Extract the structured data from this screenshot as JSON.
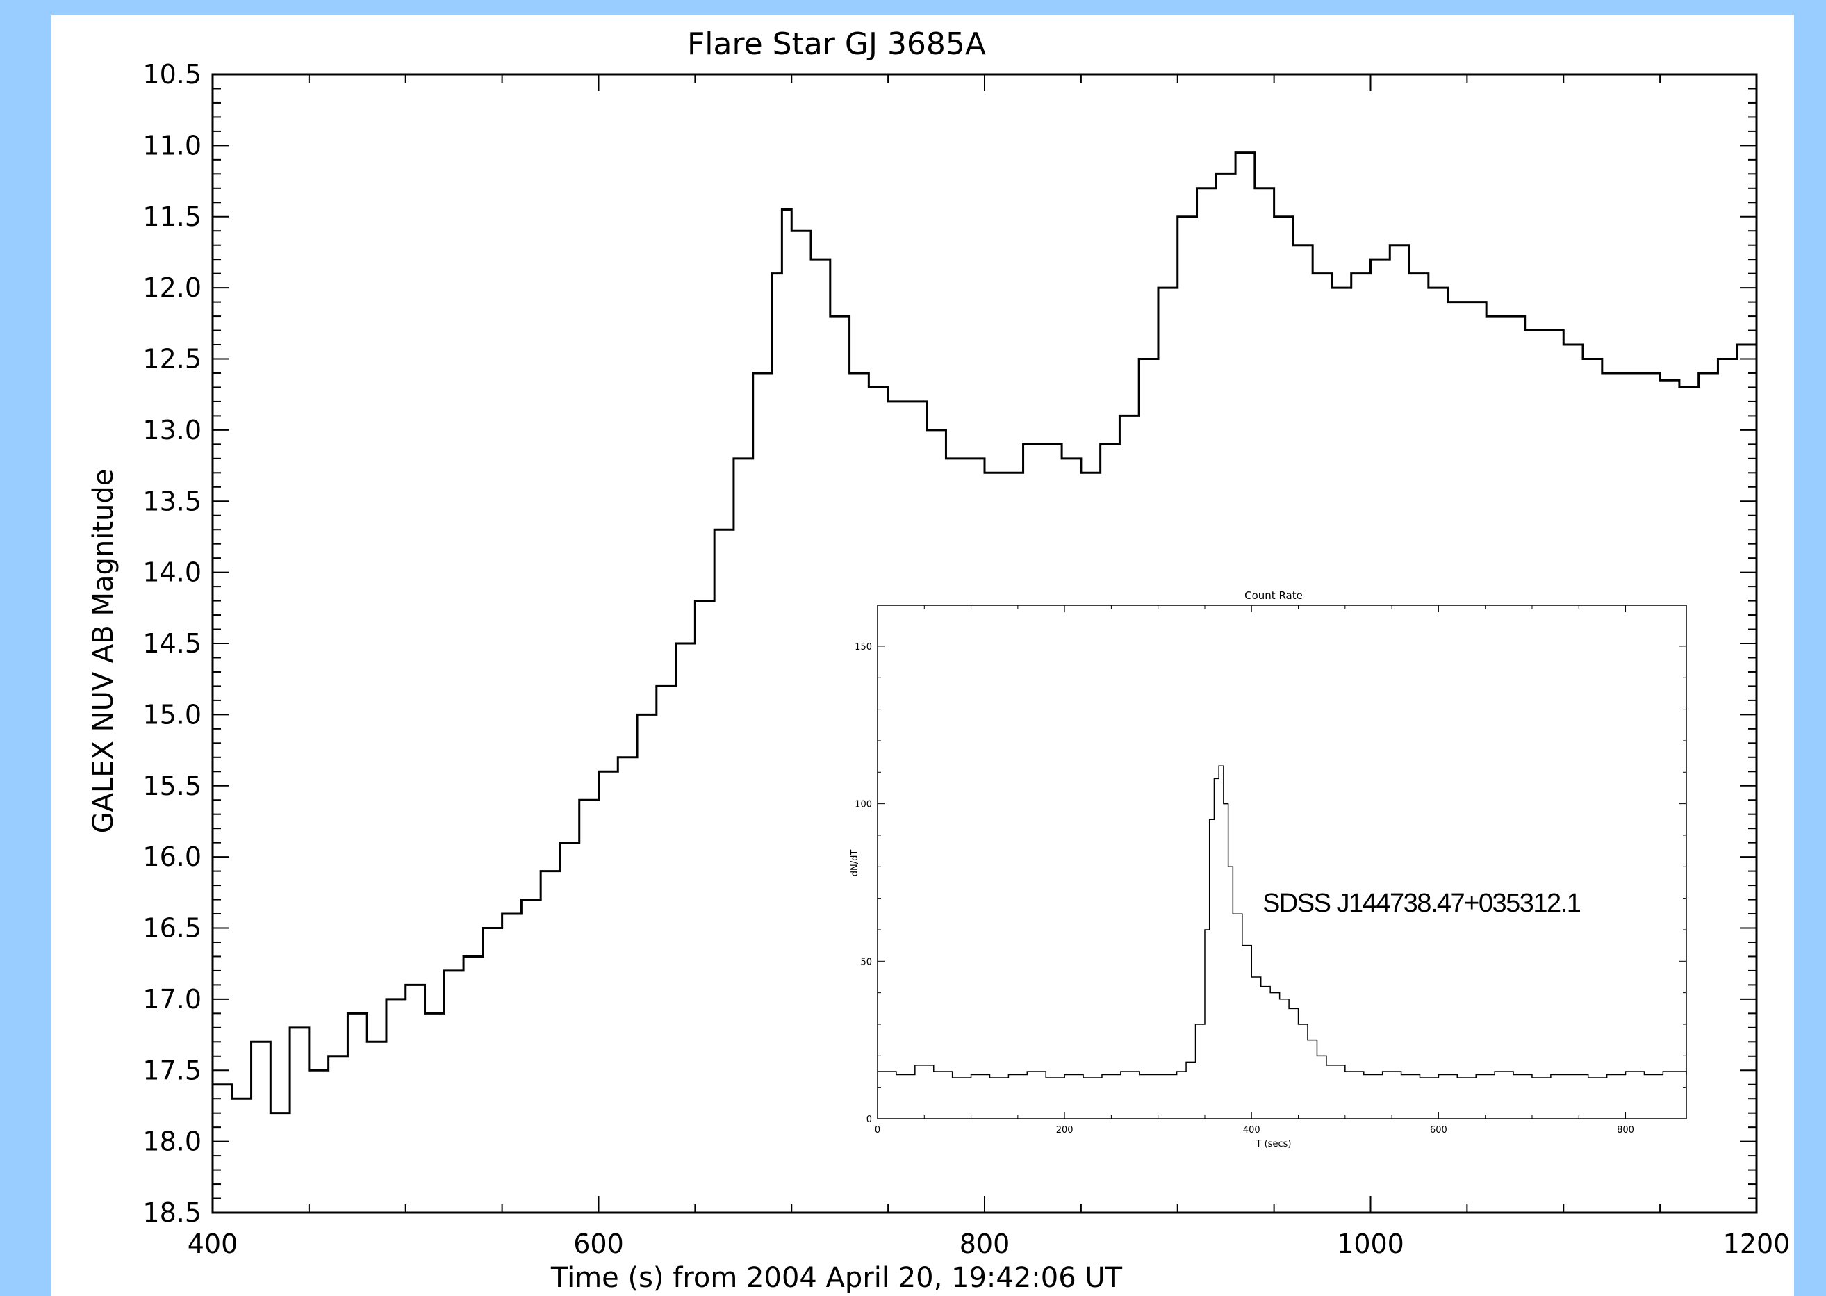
{
  "colors": {
    "background": "#99ccff",
    "panel": "#ffffff",
    "ink": "#000000"
  },
  "chart_data": [
    {
      "type": "line",
      "title": "Flare Star GJ 3685A",
      "xlabel": "Time (s) from 2004 April 20, 19:42:06 UT",
      "ylabel": "GALEX NUV AB Magnitude",
      "xlim": [
        400,
        1200
      ],
      "ylim": [
        18.5,
        10.5
      ],
      "y_inverted": true,
      "grid": false,
      "step": true,
      "x_ticks": [
        400,
        600,
        800,
        1000,
        1200
      ],
      "x_tick_labels": [
        "400",
        "600",
        "800",
        "1000",
        "1200"
      ],
      "y_ticks": [
        10.5,
        11.0,
        11.5,
        12.0,
        12.5,
        13.0,
        13.5,
        14.0,
        14.5,
        15.0,
        15.5,
        16.0,
        16.5,
        17.0,
        17.5,
        18.0,
        18.5
      ],
      "y_tick_labels": [
        "10.5",
        "11.0",
        "11.5",
        "12.0",
        "12.5",
        "13.0",
        "13.5",
        "14.0",
        "14.5",
        "15.0",
        "15.5",
        "16.0",
        "16.5",
        "17.0",
        "17.5",
        "18.0",
        "18.5"
      ],
      "series": [
        {
          "x": [
            400,
            410,
            420,
            430,
            440,
            450,
            460,
            470,
            480,
            490,
            500,
            510,
            520,
            530,
            540,
            550,
            560,
            570,
            580,
            590,
            600,
            610,
            620,
            630,
            640,
            650,
            660,
            670,
            680,
            690,
            695,
            700,
            710,
            720,
            730,
            740,
            750,
            760,
            770,
            780,
            790,
            800,
            810,
            820,
            830,
            840,
            850,
            860,
            870,
            880,
            890,
            900,
            910,
            920,
            930,
            940,
            950,
            960,
            970,
            980,
            990,
            1000,
            1010,
            1020,
            1030,
            1040,
            1050,
            1060,
            1070,
            1080,
            1090,
            1100,
            1110,
            1120,
            1130,
            1140,
            1150,
            1160,
            1170,
            1180,
            1190,
            1200
          ],
          "y": [
            17.6,
            17.7,
            17.3,
            17.8,
            17.2,
            17.5,
            17.4,
            17.1,
            17.3,
            17.0,
            16.9,
            17.1,
            16.8,
            16.7,
            16.5,
            16.4,
            16.3,
            16.1,
            15.9,
            15.6,
            15.4,
            15.3,
            15.0,
            14.8,
            14.5,
            14.2,
            13.7,
            13.2,
            12.6,
            11.9,
            11.45,
            11.6,
            11.8,
            12.2,
            12.6,
            12.7,
            12.8,
            12.8,
            13.0,
            13.2,
            13.2,
            13.3,
            13.3,
            13.1,
            13.1,
            13.2,
            13.3,
            13.1,
            12.9,
            12.5,
            12.0,
            11.5,
            11.3,
            11.2,
            11.05,
            11.3,
            11.5,
            11.7,
            11.9,
            12.0,
            11.9,
            11.8,
            11.7,
            11.9,
            12.0,
            12.1,
            12.1,
            12.2,
            12.2,
            12.3,
            12.3,
            12.4,
            12.5,
            12.6,
            12.6,
            12.6,
            12.65,
            12.7,
            12.6,
            12.5,
            12.4,
            12.4
          ]
        }
      ]
    },
    {
      "type": "line",
      "title": "Count Rate",
      "xlabel": "T (secs)",
      "ylabel": "dN/dT",
      "xlim": [
        0,
        865
      ],
      "ylim": [
        0,
        163
      ],
      "grid": false,
      "step": true,
      "x_ticks": [
        0,
        200,
        400,
        600,
        800
      ],
      "x_tick_labels": [
        "0",
        "200",
        "400",
        "600",
        "800"
      ],
      "y_ticks": [
        0,
        50,
        100,
        150
      ],
      "y_tick_labels": [
        "0",
        "50",
        "100",
        "150"
      ],
      "annotation": "SDSS J144738.47+035312.1",
      "series": [
        {
          "x": [
            0,
            20,
            40,
            60,
            80,
            100,
            120,
            140,
            160,
            180,
            200,
            220,
            240,
            260,
            280,
            300,
            320,
            330,
            340,
            350,
            355,
            360,
            365,
            370,
            375,
            380,
            390,
            400,
            410,
            420,
            430,
            440,
            450,
            460,
            470,
            480,
            500,
            520,
            540,
            560,
            580,
            600,
            620,
            640,
            660,
            680,
            700,
            720,
            740,
            760,
            780,
            800,
            820,
            840,
            865
          ],
          "y": [
            15,
            14,
            17,
            15,
            13,
            14,
            13,
            14,
            15,
            13,
            14,
            13,
            14,
            15,
            14,
            14,
            15,
            18,
            30,
            60,
            95,
            108,
            112,
            100,
            80,
            65,
            55,
            45,
            42,
            40,
            38,
            35,
            30,
            25,
            20,
            17,
            15,
            14,
            15,
            14,
            13,
            14,
            13,
            14,
            15,
            14,
            13,
            14,
            14,
            13,
            14,
            15,
            14,
            15,
            14
          ]
        }
      ]
    }
  ]
}
